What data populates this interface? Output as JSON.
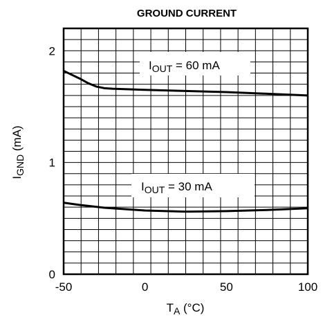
{
  "chart_data": {
    "type": "line",
    "title": "GROUND CURRENT",
    "xlabel": {
      "main": "T",
      "sub": "A",
      "suffix": " (°C)"
    },
    "ylabel": {
      "main": "I",
      "sub": "GND",
      "suffix": " (mA)"
    },
    "xlim": [
      -50,
      100
    ],
    "ylim": [
      0,
      2.2
    ],
    "xticks": [
      -50,
      0,
      50,
      100
    ],
    "yticks": [
      0,
      1,
      2
    ],
    "grid": true,
    "series": [
      {
        "label": {
          "main": "I",
          "sub": "OUT",
          "suffix": " = 60 mA"
        },
        "x": [
          -50,
          -40,
          -35,
          -30,
          -25,
          -20,
          0,
          25,
          50,
          75,
          100
        ],
        "y": [
          1.82,
          1.75,
          1.71,
          1.68,
          1.665,
          1.66,
          1.65,
          1.64,
          1.63,
          1.615,
          1.6
        ]
      },
      {
        "label": {
          "main": "I",
          "sub": "OUT",
          "suffix": " = 30 mA"
        },
        "x": [
          -50,
          -40,
          -25,
          0,
          25,
          50,
          75,
          100
        ],
        "y": [
          0.64,
          0.62,
          0.595,
          0.57,
          0.56,
          0.565,
          0.575,
          0.59
        ]
      }
    ]
  }
}
